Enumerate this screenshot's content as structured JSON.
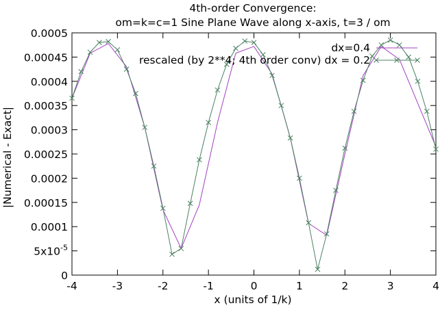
{
  "chart_data": {
    "type": "line",
    "title": "4th-order Convergence:",
    "subtitle": "om=k=c=1 Sine Plane Wave along x-axis, t=3 / om",
    "xlabel": "x (units of 1/k)",
    "ylabel": "|Numerical - Exact|",
    "xlim": [
      -4,
      4
    ],
    "ylim": [
      0,
      0.0005
    ],
    "x_ticks": [
      -4,
      -3,
      -2,
      -1,
      0,
      1,
      2,
      3,
      4
    ],
    "x_tick_labels": [
      "-4",
      "-3",
      "-2",
      "-1",
      "0",
      "1",
      "2",
      "3",
      "4"
    ],
    "y_ticks": [
      0,
      5e-05,
      0.0001,
      0.00015,
      0.0002,
      0.00025,
      0.0003,
      0.00035,
      0.0004,
      0.00045,
      0.0005
    ],
    "y_tick_labels": [
      "0",
      "5x10",
      "0.0001",
      "0.00015",
      "0.0002",
      "0.00025",
      "0.0003",
      "0.00035",
      "0.0004",
      "0.00045",
      "0.0005"
    ],
    "y_tick_exponent": "-5",
    "grid": false,
    "legend_position": "top-right",
    "series": [
      {
        "name": "dx=0.4",
        "color": "#a040c0",
        "marker": "none",
        "x": [
          -4.0,
          -3.6,
          -3.2,
          -2.8,
          -2.4,
          -2.0,
          -1.6,
          -1.2,
          -0.8,
          -0.4,
          0.0,
          0.4,
          0.8,
          1.2,
          1.6,
          2.0,
          2.4,
          2.8,
          3.2,
          3.6,
          4.0
        ],
        "y": [
          0.000365,
          0.000458,
          0.000478,
          0.00043,
          0.000305,
          0.000135,
          5.5e-05,
          0.000145,
          0.000315,
          0.000458,
          0.000472,
          0.000415,
          0.000283,
          0.000107,
          8.2e-05,
          0.00025,
          0.000412,
          0.000472,
          0.000445,
          0.000355,
          0.000265
        ]
      },
      {
        "name": "rescaled (by 2**4; 4th order conv) dx = 0.2",
        "color": "#4a8060",
        "marker": "x",
        "x": [
          -4.0,
          -3.8,
          -3.6,
          -3.4,
          -3.2,
          -3.0,
          -2.8,
          -2.6,
          -2.4,
          -2.2,
          -2.0,
          -1.8,
          -1.6,
          -1.4,
          -1.2,
          -1.0,
          -0.8,
          -0.6,
          -0.4,
          -0.2,
          0.0,
          0.2,
          0.4,
          0.6,
          0.8,
          1.0,
          1.2,
          1.4,
          1.6,
          1.8,
          2.0,
          2.2,
          2.4,
          2.6,
          2.8,
          3.0,
          3.2,
          3.4,
          3.6,
          3.8,
          4.0
        ],
        "y": [
          0.000365,
          0.00042,
          0.00046,
          0.00048,
          0.000482,
          0.000465,
          0.000425,
          0.000375,
          0.000305,
          0.000225,
          0.000138,
          4.3e-05,
          5.5e-05,
          0.000148,
          0.000238,
          0.000315,
          0.000382,
          0.000435,
          0.000468,
          0.000483,
          0.00048,
          0.000455,
          0.000412,
          0.00035,
          0.000283,
          0.0002,
          0.000108,
          1.2e-05,
          8.5e-05,
          0.000175,
          0.000262,
          0.000338,
          0.000402,
          0.000452,
          0.000475,
          0.000485,
          0.000475,
          0.00045,
          0.0004,
          0.000338,
          0.00026
        ]
      }
    ]
  }
}
